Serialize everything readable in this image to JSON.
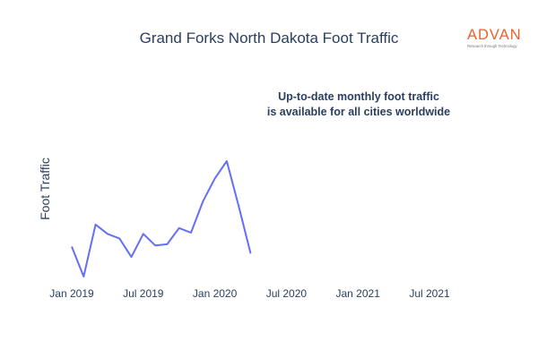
{
  "header": {
    "title": "Grand Forks North Dakota Foot Traffic"
  },
  "logo": {
    "word": "ADVAN",
    "tagline": "Research through Technology",
    "color": "#e8622d"
  },
  "annotation": {
    "line1": "Up-to-date monthly foot traffic",
    "line2": "is available for all cities worldwide"
  },
  "chart_data": {
    "type": "line",
    "title": "Grand Forks North Dakota Foot Traffic",
    "xlabel": "",
    "ylabel": "Foot Traffic",
    "grid": false,
    "legend": "none",
    "series": [
      {
        "color": "#636efa",
        "x": [
          "2019-01",
          "2019-02",
          "2019-03",
          "2019-04",
          "2019-05",
          "2019-06",
          "2019-07",
          "2019-08",
          "2019-09",
          "2019-10",
          "2019-11",
          "2019-12",
          "2020-01",
          "2020-02",
          "2020-03",
          "2020-04",
          "2020-05"
        ],
        "values": [
          0.26,
          0.0,
          0.45,
          0.37,
          0.33,
          0.17,
          0.37,
          0.27,
          0.28,
          0.42,
          0.38,
          0.65,
          0.85,
          1.0,
          0.61,
          0.2,
          null
        ]
      }
    ],
    "xticks": [
      "Jan 2019",
      "Jul 2019",
      "Jan 2020",
      "Jul 2020",
      "Jan 2021",
      "Jul 2021"
    ]
  }
}
